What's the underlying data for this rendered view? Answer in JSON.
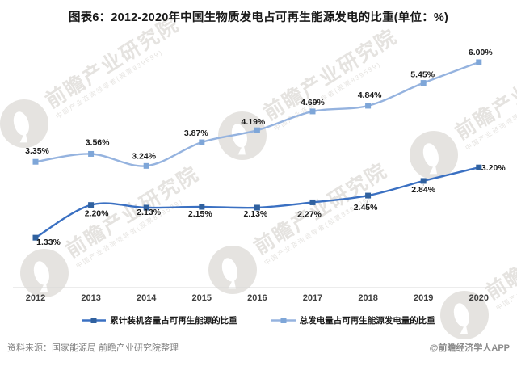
{
  "title": "图表6：2012-2020年中国生物质发电占可再生能源发电的比重(单位：%)",
  "chart_data": {
    "type": "line",
    "categories": [
      "2012",
      "2013",
      "2014",
      "2015",
      "2016",
      "2017",
      "2018",
      "2019",
      "2020"
    ],
    "series": [
      {
        "name": "累计装机容量占可再生能源的比重",
        "values": [
          1.33,
          2.2,
          2.13,
          2.15,
          2.13,
          2.27,
          2.45,
          2.84,
          3.2
        ],
        "color": "#3A70C2",
        "marker_color": "#30619F"
      },
      {
        "name": "总发电量占可再生能源发电量的比重",
        "values": [
          3.35,
          3.56,
          3.24,
          3.87,
          4.19,
          4.69,
          4.84,
          5.45,
          6.0
        ],
        "color": "#95B3DF",
        "marker_color": "#7EA6D8"
      }
    ],
    "unit": "%",
    "ylim": [
      0,
      6.5
    ],
    "grid": false,
    "legend_position": "bottom",
    "data_label_format": "0.00%"
  },
  "source_note": "资料来源：国家能源局 前瞻产业研究院整理",
  "credit": "@前瞻经济学人APP",
  "watermark": {
    "main": "前瞻产业研究院",
    "subtitle": "中国产业咨询领导者(股票839599)"
  }
}
